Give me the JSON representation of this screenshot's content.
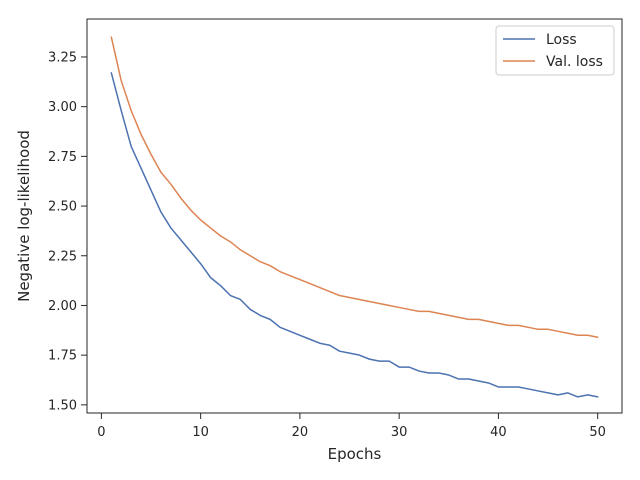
{
  "chart_data": {
    "type": "line",
    "xlabel": "Epochs",
    "ylabel": "Negative log-likelihood",
    "xlim": [
      -1.45,
      52.45
    ],
    "ylim": [
      1.459,
      3.441
    ],
    "xticks": [
      0,
      10,
      20,
      30,
      40,
      50
    ],
    "xtick_labels": [
      "0",
      "10",
      "20",
      "30",
      "40",
      "50"
    ],
    "yticks": [
      1.5,
      1.75,
      2.0,
      2.25,
      2.5,
      2.75,
      3.0,
      3.25
    ],
    "ytick_labels": [
      "1.50",
      "1.75",
      "2.00",
      "2.25",
      "2.50",
      "2.75",
      "3.00",
      "3.25"
    ],
    "grid": false,
    "legend_position": "top-right",
    "x": [
      1,
      2,
      3,
      4,
      5,
      6,
      7,
      8,
      9,
      10,
      11,
      12,
      13,
      14,
      15,
      16,
      17,
      18,
      19,
      20,
      21,
      22,
      23,
      24,
      25,
      26,
      27,
      28,
      29,
      30,
      31,
      32,
      33,
      34,
      35,
      36,
      37,
      38,
      39,
      40,
      41,
      42,
      43,
      44,
      45,
      46,
      47,
      48,
      49,
      50
    ],
    "series": [
      {
        "name": "Loss",
        "color": "#4c72b0",
        "values": [
          3.17,
          2.98,
          2.8,
          2.69,
          2.58,
          2.47,
          2.39,
          2.33,
          2.27,
          2.21,
          2.14,
          2.1,
          2.05,
          2.03,
          1.98,
          1.95,
          1.93,
          1.89,
          1.87,
          1.85,
          1.83,
          1.81,
          1.8,
          1.77,
          1.76,
          1.75,
          1.73,
          1.72,
          1.72,
          1.69,
          1.69,
          1.67,
          1.66,
          1.66,
          1.65,
          1.63,
          1.63,
          1.62,
          1.61,
          1.59,
          1.59,
          1.59,
          1.58,
          1.57,
          1.56,
          1.55,
          1.56,
          1.54,
          1.55,
          1.54
        ]
      },
      {
        "name": "Val. loss",
        "color": "#dd8452",
        "values": [
          3.35,
          3.13,
          2.98,
          2.86,
          2.76,
          2.67,
          2.61,
          2.54,
          2.48,
          2.43,
          2.39,
          2.35,
          2.32,
          2.28,
          2.25,
          2.22,
          2.2,
          2.17,
          2.15,
          2.13,
          2.11,
          2.09,
          2.07,
          2.05,
          2.04,
          2.03,
          2.02,
          2.01,
          2.0,
          1.99,
          1.98,
          1.97,
          1.97,
          1.96,
          1.95,
          1.94,
          1.93,
          1.93,
          1.92,
          1.91,
          1.9,
          1.9,
          1.89,
          1.88,
          1.88,
          1.87,
          1.86,
          1.85,
          1.85,
          1.84
        ]
      }
    ]
  }
}
